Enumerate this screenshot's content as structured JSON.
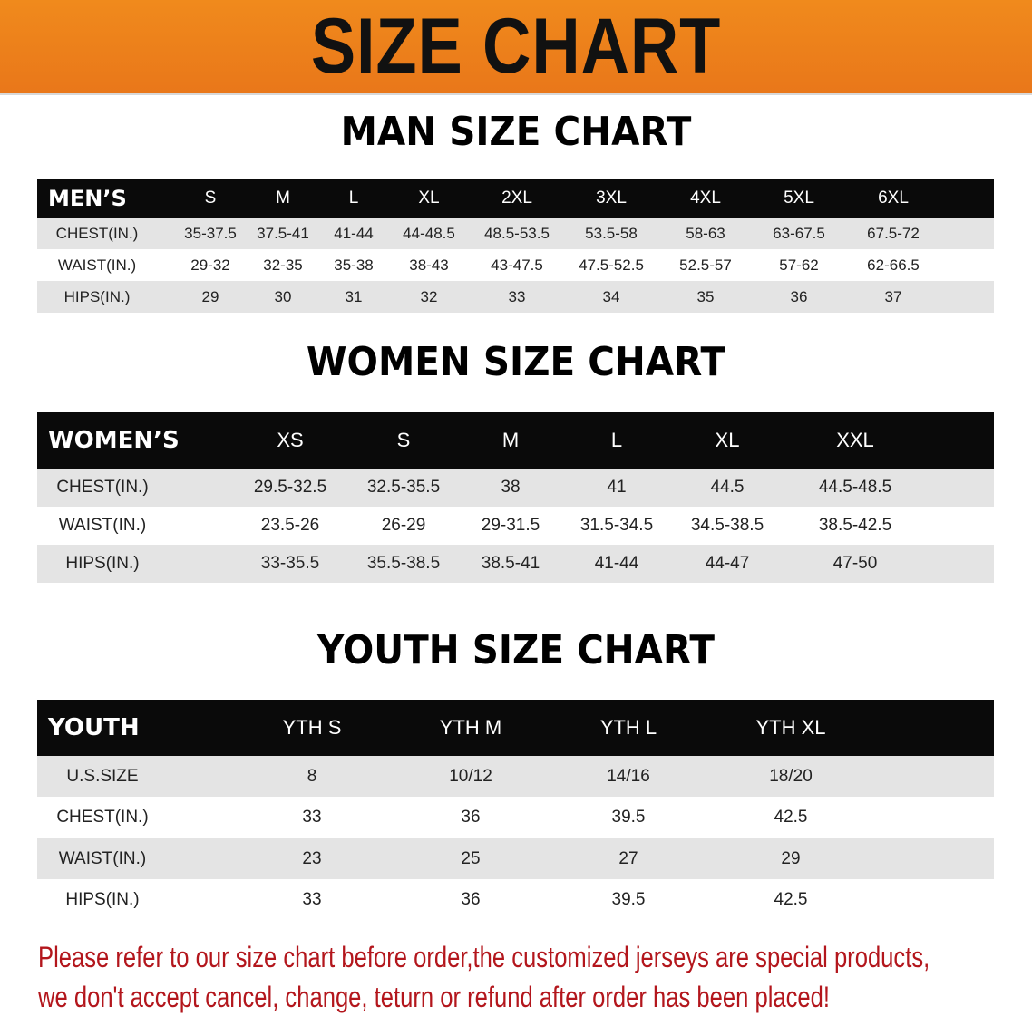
{
  "banner_title": "SIZE CHART",
  "men": {
    "title": "MAN SIZE CHART",
    "header": [
      "MEN’S",
      "S",
      "M",
      "L",
      "XL",
      "2XL",
      "3XL",
      "4XL",
      "5XL",
      "6XL"
    ],
    "rows": [
      [
        "CHEST(IN.)",
        "35-37.5",
        "37.5-41",
        "41-44",
        "44-48.5",
        "48.5-53.5",
        "53.5-58",
        "58-63",
        "63-67.5",
        "67.5-72"
      ],
      [
        "WAIST(IN.)",
        "29-32",
        "32-35",
        "35-38",
        "38-43",
        "43-47.5",
        "47.5-52.5",
        "52.5-57",
        "57-62",
        "62-66.5"
      ],
      [
        "HIPS(IN.)",
        "29",
        "30",
        "31",
        "32",
        "33",
        "34",
        "35",
        "36",
        "37"
      ]
    ]
  },
  "women": {
    "title": "WOMEN SIZE CHART",
    "header": [
      "WOMEN’S",
      "XS",
      "S",
      "M",
      "L",
      "XL",
      "XXL"
    ],
    "rows": [
      [
        "CHEST(IN.)",
        "29.5-32.5",
        "32.5-35.5",
        "38",
        "41",
        "44.5",
        "44.5-48.5"
      ],
      [
        "WAIST(IN.)",
        "23.5-26",
        "26-29",
        "29-31.5",
        "31.5-34.5",
        "34.5-38.5",
        "38.5-42.5"
      ],
      [
        "HIPS(IN.)",
        "33-35.5",
        "35.5-38.5",
        "38.5-41",
        "41-44",
        "44-47",
        "47-50"
      ]
    ]
  },
  "youth": {
    "title": "YOUTH SIZE CHART",
    "header": [
      "YOUTH",
      "YTH S",
      "YTH M",
      "YTH L",
      "YTH XL"
    ],
    "rows": [
      [
        "U.S.SIZE",
        "8",
        "10/12",
        "14/16",
        "18/20"
      ],
      [
        "CHEST(IN.)",
        "33",
        "36",
        "39.5",
        "42.5"
      ],
      [
        "WAIST(IN.)",
        "23",
        "25",
        "27",
        "29"
      ],
      [
        "HIPS(IN.)",
        "33",
        "36",
        "39.5",
        "42.5"
      ]
    ]
  },
  "footer": {
    "line1": "Please refer to our size chart before order,the customized jerseys are special products,",
    "line2": "we don't accept cancel, change, teturn or refund after order has been placed!"
  },
  "colors": {
    "banner": "#ef821b",
    "header_row": "#0a0a0a",
    "stripe": "#e4e4e4",
    "notice_text": "#b3161c"
  }
}
